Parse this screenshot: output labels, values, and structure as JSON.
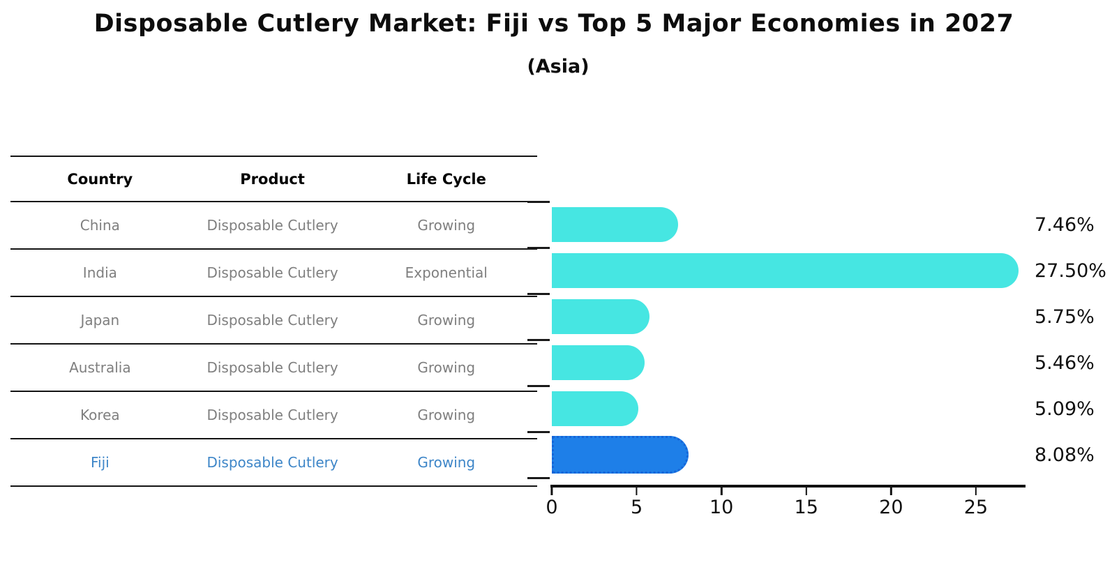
{
  "title": "Disposable Cutlery Market: Fiji vs Top 5 Major Economies in 2027",
  "subtitle": "(Asia)",
  "table": {
    "headers": [
      "Country",
      "Product",
      "Life Cycle"
    ],
    "rows": [
      {
        "country": "China",
        "product": "Disposable Cutlery",
        "life_cycle": "Growing",
        "highlight": false
      },
      {
        "country": "India",
        "product": "Disposable Cutlery",
        "life_cycle": "Exponential",
        "highlight": false
      },
      {
        "country": "Japan",
        "product": "Disposable Cutlery",
        "life_cycle": "Growing",
        "highlight": false
      },
      {
        "country": "Australia",
        "product": "Disposable Cutlery",
        "life_cycle": "Growing",
        "highlight": false
      },
      {
        "country": "Korea",
        "product": "Disposable Cutlery",
        "life_cycle": "Growing",
        "highlight": false
      },
      {
        "country": "Fiji",
        "product": "Disposable Cutlery",
        "life_cycle": "Growing",
        "highlight": true
      }
    ]
  },
  "chart_data": {
    "type": "bar",
    "orientation": "horizontal",
    "title": "Disposable Cutlery Market: Fiji vs Top 5 Major Economies in 2027",
    "subtitle": "(Asia)",
    "categories": [
      "China",
      "India",
      "Japan",
      "Australia",
      "Korea",
      "Fiji"
    ],
    "values": [
      7.46,
      27.5,
      5.75,
      5.46,
      5.09,
      8.08
    ],
    "value_labels": [
      "7.46%",
      "27.50%",
      "5.75%",
      "5.46%",
      "5.09%",
      "8.08%"
    ],
    "highlight_index": 5,
    "xlabel": "",
    "ylabel": "",
    "xlim": [
      0,
      27.8
    ],
    "x_ticks": [
      0,
      5,
      10,
      15,
      20,
      25
    ],
    "grid": false,
    "legend": false,
    "colors": {
      "default_bar": "#46e6e2",
      "highlight_bar": "#1e7fe8",
      "highlight_border": "#1565d8",
      "highlight_text": "#3e86c8",
      "row_text": "#7f7f7f",
      "axis": "#111111"
    }
  }
}
